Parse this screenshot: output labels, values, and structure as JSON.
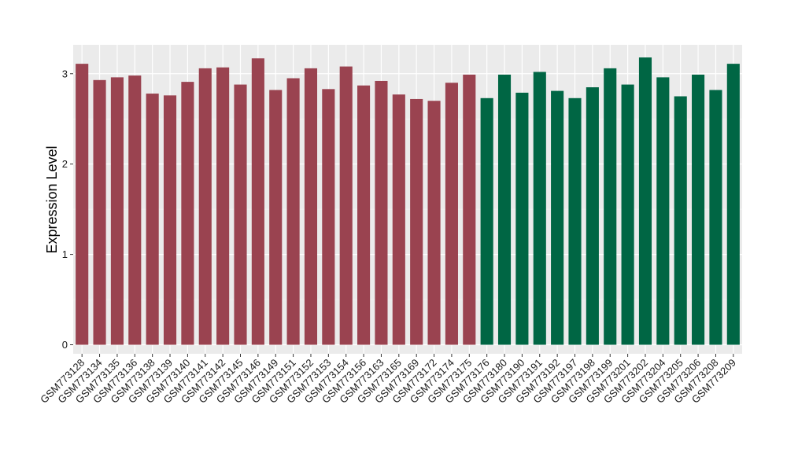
{
  "chart_data": {
    "type": "bar",
    "ylabel": "Expression Level",
    "xlabel": "",
    "ylim": [
      -0.1,
      3.32
    ],
    "yticks": [
      0,
      1,
      2,
      3
    ],
    "grid": true,
    "background": "#ebebeb",
    "categories": [
      "GSM773128",
      "GSM773134",
      "GSM773135",
      "GSM773136",
      "GSM773138",
      "GSM773139",
      "GSM773140",
      "GSM773141",
      "GSM773142",
      "GSM773145",
      "GSM773146",
      "GSM773149",
      "GSM773151",
      "GSM773152",
      "GSM773153",
      "GSM773154",
      "GSM773156",
      "GSM773163",
      "GSM773165",
      "GSM773169",
      "GSM773172",
      "GSM773174",
      "GSM773175",
      "GSM773176",
      "GSM773180",
      "GSM773190",
      "GSM773191",
      "GSM773192",
      "GSM773197",
      "GSM773198",
      "GSM773199",
      "GSM773201",
      "GSM773202",
      "GSM773204",
      "GSM773205",
      "GSM773206",
      "GSM773208",
      "GSM773209"
    ],
    "values": [
      3.11,
      2.93,
      2.96,
      2.98,
      2.78,
      2.76,
      2.91,
      3.06,
      3.07,
      2.88,
      3.17,
      2.82,
      2.95,
      3.06,
      2.83,
      3.08,
      2.87,
      2.92,
      2.77,
      2.72,
      2.7,
      2.9,
      2.99,
      2.73,
      2.99,
      2.79,
      3.02,
      2.81,
      2.73,
      2.85,
      3.06,
      2.88,
      3.18,
      2.96,
      2.75,
      2.99,
      2.82,
      3.11
    ],
    "colors": [
      "#9a4350",
      "#9a4350",
      "#9a4350",
      "#9a4350",
      "#9a4350",
      "#9a4350",
      "#9a4350",
      "#9a4350",
      "#9a4350",
      "#9a4350",
      "#9a4350",
      "#9a4350",
      "#9a4350",
      "#9a4350",
      "#9a4350",
      "#9a4350",
      "#9a4350",
      "#9a4350",
      "#9a4350",
      "#9a4350",
      "#9a4350",
      "#9a4350",
      "#9a4350",
      "#006644",
      "#006644",
      "#006644",
      "#006644",
      "#006644",
      "#006644",
      "#006644",
      "#006644",
      "#006644",
      "#006644",
      "#006644",
      "#006644",
      "#006644",
      "#006644",
      "#006644"
    ]
  }
}
